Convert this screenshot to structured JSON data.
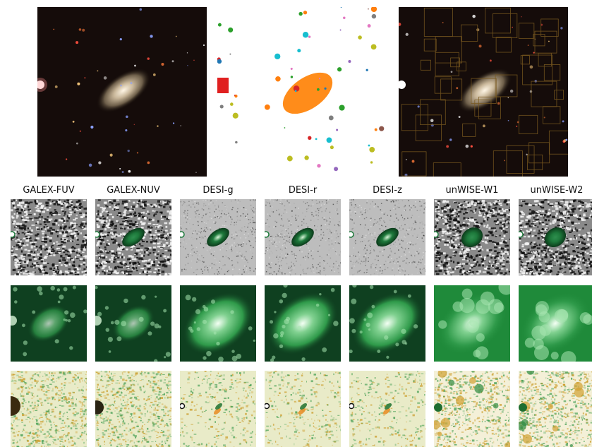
{
  "top_row": {
    "panels": [
      {
        "kind": "color-image"
      },
      {
        "kind": "segmentation-mask"
      },
      {
        "kind": "color-image-with-boxes"
      }
    ]
  },
  "bands": [
    {
      "label": "GALEX-FUV"
    },
    {
      "label": "GALEX-NUV"
    },
    {
      "label": "DESI-g"
    },
    {
      "label": "DESI-r"
    },
    {
      "label": "DESI-z"
    },
    {
      "label": "unWISE-W1"
    },
    {
      "label": "unWISE-W2"
    }
  ],
  "rows": [
    {
      "kind": "data",
      "colormap": "greens-on-gray"
    },
    {
      "kind": "model",
      "colormap": "greens"
    },
    {
      "kind": "residual",
      "colormap": "green-orange-diverging"
    }
  ]
}
